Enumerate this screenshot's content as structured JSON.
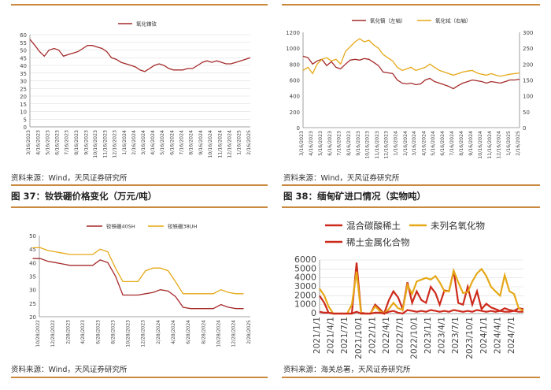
{
  "colors": {
    "brown": "#a52a2a",
    "gold": "#e6a817",
    "red": "#cc2a1c",
    "rule": "#c98a3f",
    "grid": "#d9d9d9",
    "axis": "#888888"
  },
  "captions": {
    "top_left_source": "资料来源：Wind，天风证券研究所",
    "top_right_source": "资料来源：Wind，天风证券研究所",
    "fig37": "图 37：钕铁硼价格变化（万元/吨）",
    "fig38": "图 38：缅甸矿进口情况（实物吨）",
    "bottom_left_source": "资料来源：Wind，天风证券研究所",
    "bottom_right_source": "资料来源：海关总署，天风证券研究所"
  },
  "chart_data": [
    {
      "id": "c1",
      "type": "line",
      "series": [
        {
          "name": "氧化镨钕",
          "x": [
            "2023-03-16",
            "2023-04-01",
            "2023-04-16",
            "2023-05-01",
            "2023-05-16",
            "2023-06-01",
            "2023-06-16",
            "2023-07-01",
            "2023-07-16",
            "2023-08-01",
            "2023-08-16",
            "2023-09-01",
            "2023-09-16",
            "2023-10-01",
            "2023-10-16",
            "2023-11-01",
            "2023-11-16",
            "2023-12-01",
            "2023-12-16",
            "2024-01-01",
            "2024-01-16",
            "2024-02-01",
            "2024-02-16",
            "2024-03-01",
            "2024-03-16",
            "2024-04-01",
            "2024-04-16",
            "2024-05-01",
            "2024-05-16",
            "2024-06-01",
            "2024-06-16",
            "2024-07-01",
            "2024-07-16",
            "2024-08-01",
            "2024-08-16",
            "2024-09-01",
            "2024-09-16",
            "2024-10-01",
            "2024-10-16",
            "2024-11-01",
            "2024-11-16",
            "2024-12-01",
            "2024-12-16",
            "2025-01-01",
            "2025-01-16",
            "2025-02-01",
            "2025-02-16"
          ],
          "values": [
            57,
            53,
            49,
            46,
            50,
            51,
            50,
            46,
            47,
            48,
            49,
            51,
            53,
            53,
            52,
            51,
            49,
            45,
            44,
            42,
            41,
            40,
            39,
            37,
            36,
            38,
            40,
            41,
            40,
            38,
            37,
            37,
            37,
            38,
            38,
            40,
            42,
            43,
            42,
            43,
            42,
            41,
            41,
            42,
            43,
            44,
            45
          ]
        }
      ],
      "x_ticks": [
        "3/16/2023",
        "4/16/2023",
        "5/16/2023",
        "6/16/2023",
        "7/16/2023",
        "8/16/2023",
        "9/16/2023",
        "10/16/2023",
        "11/16/2023",
        "12/16/2023",
        "1/16/2024",
        "2/16/2024",
        "3/16/2024",
        "4/16/2024",
        "5/16/2024",
        "6/16/2024",
        "7/16/2024",
        "8/16/2024",
        "9/16/2024",
        "10/16/2024",
        "11/16/2024",
        "12/16/2024",
        "1/16/2025",
        "2/16/2025"
      ],
      "y_ticks": [
        "0",
        "5",
        "10",
        "15",
        "20",
        "25",
        "30",
        "35",
        "40",
        "45",
        "50",
        "55",
        "60"
      ],
      "ylim": [
        0,
        60
      ]
    },
    {
      "id": "c2",
      "type": "line",
      "series": [
        {
          "name": "氧化镝（左轴）",
          "axis": "left",
          "x": [
            "2023-03-16",
            "2023-04-01",
            "2023-04-16",
            "2023-05-01",
            "2023-05-16",
            "2023-06-01",
            "2023-06-16",
            "2023-07-01",
            "2023-07-16",
            "2023-08-01",
            "2023-08-16",
            "2023-09-01",
            "2023-09-16",
            "2023-10-01",
            "2023-10-16",
            "2023-11-01",
            "2023-11-16",
            "2023-12-01",
            "2023-12-16",
            "2024-01-01",
            "2024-01-16",
            "2024-02-01",
            "2024-02-16",
            "2024-03-01",
            "2024-03-16",
            "2024-04-01",
            "2024-04-16",
            "2024-05-01",
            "2024-05-16",
            "2024-06-01",
            "2024-06-16",
            "2024-07-01",
            "2024-07-16",
            "2024-08-01",
            "2024-08-16",
            "2024-09-01",
            "2024-09-16",
            "2024-10-01",
            "2024-10-16",
            "2024-11-01",
            "2024-11-16",
            "2024-12-01",
            "2024-12-16",
            "2025-01-01",
            "2025-01-16",
            "2025-02-01",
            "2025-02-16"
          ],
          "values": [
            900,
            880,
            800,
            840,
            860,
            780,
            830,
            760,
            740,
            800,
            850,
            860,
            850,
            870,
            860,
            820,
            780,
            700,
            690,
            680,
            600,
            560,
            550,
            560,
            540,
            550,
            600,
            620,
            580,
            560,
            540,
            520,
            490,
            530,
            560,
            580,
            600,
            590,
            580,
            560,
            580,
            570,
            560,
            580,
            600,
            600,
            610
          ]
        },
        {
          "name": "氧化铽（右轴）",
          "axis": "right",
          "x": [
            "2023-03-16",
            "2023-04-01",
            "2023-04-16",
            "2023-05-01",
            "2023-05-16",
            "2023-06-01",
            "2023-06-16",
            "2023-07-01",
            "2023-07-16",
            "2023-08-01",
            "2023-08-16",
            "2023-09-01",
            "2023-09-16",
            "2023-10-01",
            "2023-10-16",
            "2023-11-01",
            "2023-11-16",
            "2023-12-01",
            "2023-12-16",
            "2024-01-01",
            "2024-01-16",
            "2024-02-01",
            "2024-02-16",
            "2024-03-01",
            "2024-03-16",
            "2024-04-01",
            "2024-04-16",
            "2024-05-01",
            "2024-05-16",
            "2024-06-01",
            "2024-06-16",
            "2024-07-01",
            "2024-07-16",
            "2024-08-01",
            "2024-08-16",
            "2024-09-01",
            "2024-09-16",
            "2024-10-01",
            "2024-10-16",
            "2024-11-01",
            "2024-11-16",
            "2024-12-01",
            "2024-12-16",
            "2025-01-01",
            "2025-01-16",
            "2025-02-01",
            "2025-02-16"
          ],
          "values": [
            180,
            190,
            170,
            200,
            215,
            220,
            210,
            215,
            200,
            240,
            255,
            270,
            280,
            270,
            275,
            260,
            250,
            230,
            220,
            210,
            190,
            180,
            185,
            190,
            180,
            185,
            190,
            200,
            190,
            180,
            175,
            170,
            165,
            170,
            175,
            178,
            180,
            172,
            168,
            165,
            170,
            165,
            162,
            165,
            168,
            170,
            172
          ]
        }
      ],
      "x_ticks": [
        "3/16/2023",
        "4/16/2023",
        "5/16/2023",
        "6/16/2023",
        "7/16/2023",
        "8/16/2023",
        "9/16/2023",
        "10/16/2023",
        "11/16/2023",
        "12/16/2023",
        "1/16/2024",
        "2/16/2024",
        "3/16/2024",
        "4/16/2024",
        "5/16/2024",
        "6/16/2024",
        "7/16/2024",
        "8/16/2024",
        "9/16/2024",
        "10/16/2024",
        "11/16/2024",
        "12/16/2024",
        "1/16/2025",
        "2/16/2025"
      ],
      "y_ticks_left": [
        "0",
        "200",
        "400",
        "600",
        "800",
        "1000",
        "1200"
      ],
      "y_ticks_right": [
        "0",
        "50",
        "100",
        "150",
        "200",
        "250",
        "300"
      ],
      "ylim_left": [
        0,
        1200
      ],
      "ylim_right": [
        0,
        300
      ]
    },
    {
      "id": "c3",
      "type": "line",
      "series": [
        {
          "name": "钕铁硼40SH",
          "x": [
            "2022-10",
            "2022-11",
            "2022-12",
            "2023-01",
            "2023-02",
            "2023-03",
            "2023-04",
            "2023-05",
            "2023-06",
            "2023-07",
            "2023-08",
            "2023-09",
            "2023-10",
            "2023-11",
            "2023-12",
            "2024-01",
            "2024-02",
            "2024-03",
            "2024-04",
            "2024-05",
            "2024-06",
            "2024-07",
            "2024-08",
            "2024-09",
            "2024-10",
            "2024-11",
            "2024-12",
            "2025-01",
            "2025-02"
          ],
          "values": [
            41.5,
            41.5,
            40.5,
            40,
            39.5,
            39,
            39,
            39,
            39,
            41,
            40,
            35,
            28,
            28,
            28,
            28.5,
            29,
            30,
            29.5,
            27.5,
            23.5,
            23,
            23,
            23,
            23,
            24.5,
            23.5,
            23,
            23
          ]
        },
        {
          "name": "钕铁硼38UH",
          "x": [
            "2022-10",
            "2022-11",
            "2022-12",
            "2023-01",
            "2023-02",
            "2023-03",
            "2023-04",
            "2023-05",
            "2023-06",
            "2023-07",
            "2023-08",
            "2023-09",
            "2023-10",
            "2023-11",
            "2023-12",
            "2024-01",
            "2024-02",
            "2024-03",
            "2024-04",
            "2024-05",
            "2024-06",
            "2024-07",
            "2024-08",
            "2024-09",
            "2024-10",
            "2024-11",
            "2024-12",
            "2025-01",
            "2025-02"
          ],
          "values": [
            45.5,
            45.5,
            44.5,
            44,
            43.5,
            43,
            43,
            43,
            43,
            45,
            44,
            38,
            33,
            33,
            33,
            37,
            38,
            38,
            37,
            33,
            28.5,
            28.5,
            28.5,
            28.5,
            28.5,
            30,
            29,
            28.5,
            28.5
          ]
        }
      ],
      "x_ticks": [
        "10/28/2022",
        "12/28/2022",
        "2/28/2023",
        "4/28/2023",
        "6/28/2023",
        "8/28/2023",
        "10/28/2023",
        "12/28/2023",
        "2/28/2024",
        "4/28/2024",
        "6/28/2024",
        "8/28/2024",
        "10/28/2024",
        "12/28/2024",
        "2/28/2025"
      ],
      "y_ticks": [
        "20",
        "25",
        "30",
        "35",
        "40",
        "45",
        "50"
      ],
      "ylim": [
        20,
        50
      ]
    },
    {
      "id": "c4",
      "type": "line",
      "series": [
        {
          "name": "混合碳酸稀土",
          "x": [
            "2021-01",
            "2021-02",
            "2021-03",
            "2021-04",
            "2021-05",
            "2021-06",
            "2021-07",
            "2021-08",
            "2021-09",
            "2021-10",
            "2021-11",
            "2021-12",
            "2022-01",
            "2022-02",
            "2022-03",
            "2022-04",
            "2022-05",
            "2022-06",
            "2022-07",
            "2022-08",
            "2022-09",
            "2022-10",
            "2022-11",
            "2022-12",
            "2023-01",
            "2023-02",
            "2023-03",
            "2023-04",
            "2023-05",
            "2023-06",
            "2023-07",
            "2023-08",
            "2023-09",
            "2023-10",
            "2023-11",
            "2023-12",
            "2024-01",
            "2024-02",
            "2024-03",
            "2024-04",
            "2024-05",
            "2024-06",
            "2024-07",
            "2024-08",
            "2024-09"
          ],
          "values": [
            2000,
            1200,
            100,
            0,
            0,
            0,
            0,
            0,
            5700,
            100,
            0,
            0,
            1000,
            500,
            0,
            1500,
            2500,
            1800,
            500,
            3500,
            1200,
            2500,
            1500,
            1200,
            3000,
            2300,
            1000,
            2600,
            2500,
            4800,
            1200,
            1000,
            3000,
            1000,
            2500,
            500,
            1100,
            700,
            500,
            300,
            600,
            400,
            300,
            600,
            500
          ]
        },
        {
          "name": "未列名氧化物",
          "x": [
            "2021-01",
            "2021-02",
            "2021-03",
            "2021-04",
            "2021-05",
            "2021-06",
            "2021-07",
            "2021-08",
            "2021-09",
            "2021-10",
            "2021-11",
            "2021-12",
            "2022-01",
            "2022-02",
            "2022-03",
            "2022-04",
            "2022-05",
            "2022-06",
            "2022-07",
            "2022-08",
            "2022-09",
            "2022-10",
            "2022-11",
            "2022-12",
            "2023-01",
            "2023-02",
            "2023-03",
            "2023-04",
            "2023-05",
            "2023-06",
            "2023-07",
            "2023-08",
            "2023-09",
            "2023-10",
            "2023-11",
            "2023-12",
            "2024-01",
            "2024-02",
            "2024-03",
            "2024-04",
            "2024-05",
            "2024-06",
            "2024-07",
            "2024-08",
            "2024-09"
          ],
          "values": [
            2800,
            2000,
            800,
            0,
            0,
            0,
            0,
            1000,
            4700,
            0,
            0,
            0,
            800,
            300,
            0,
            500,
            1200,
            600,
            400,
            3200,
            2200,
            3600,
            3800,
            4000,
            3800,
            4200,
            3500,
            2500,
            2500,
            4800,
            3500,
            2300,
            2400,
            3600,
            4500,
            5000,
            4200,
            3000,
            2500,
            2000,
            4300,
            2500,
            2200,
            600,
            300
          ]
        },
        {
          "name": "稀土金属化合物",
          "x": [
            "2021-01",
            "2021-02",
            "2021-03",
            "2021-04",
            "2021-05",
            "2021-06",
            "2021-07",
            "2021-08",
            "2021-09",
            "2021-10",
            "2021-11",
            "2021-12",
            "2022-01",
            "2022-02",
            "2022-03",
            "2022-04",
            "2022-05",
            "2022-06",
            "2022-07",
            "2022-08",
            "2022-09",
            "2022-10",
            "2022-11",
            "2022-12",
            "2023-01",
            "2023-02",
            "2023-03",
            "2023-04",
            "2023-05",
            "2023-06",
            "2023-07",
            "2023-08",
            "2023-09",
            "2023-10",
            "2023-11",
            "2023-12",
            "2024-01",
            "2024-02",
            "2024-03",
            "2024-04",
            "2024-05",
            "2024-06",
            "2024-07",
            "2024-08",
            "2024-09"
          ],
          "values": [
            200,
            100,
            100,
            0,
            0,
            0,
            0,
            0,
            200,
            0,
            0,
            0,
            100,
            100,
            0,
            200,
            300,
            100,
            0,
            400,
            300,
            200,
            300,
            200,
            400,
            300,
            200,
            300,
            200,
            400,
            300,
            200,
            300,
            200,
            400,
            300,
            200,
            300,
            200,
            300,
            200,
            200,
            300,
            200,
            200
          ]
        }
      ],
      "x_ticks": [
        "2021/1/1",
        "2021/4/1",
        "2021/7/1",
        "2021/10/1",
        "2022/1/1",
        "2022/4/1",
        "2022/7/1",
        "2022/10/1",
        "2023/1/1",
        "2023/4/1",
        "2023/7/1",
        "2023/10/1",
        "2024/1/1",
        "2024/4/1",
        "2024/7/1"
      ],
      "y_ticks": [
        "0",
        "1000",
        "2000",
        "3000",
        "4000",
        "5000",
        "6000"
      ],
      "ylim": [
        0,
        6000
      ]
    }
  ]
}
